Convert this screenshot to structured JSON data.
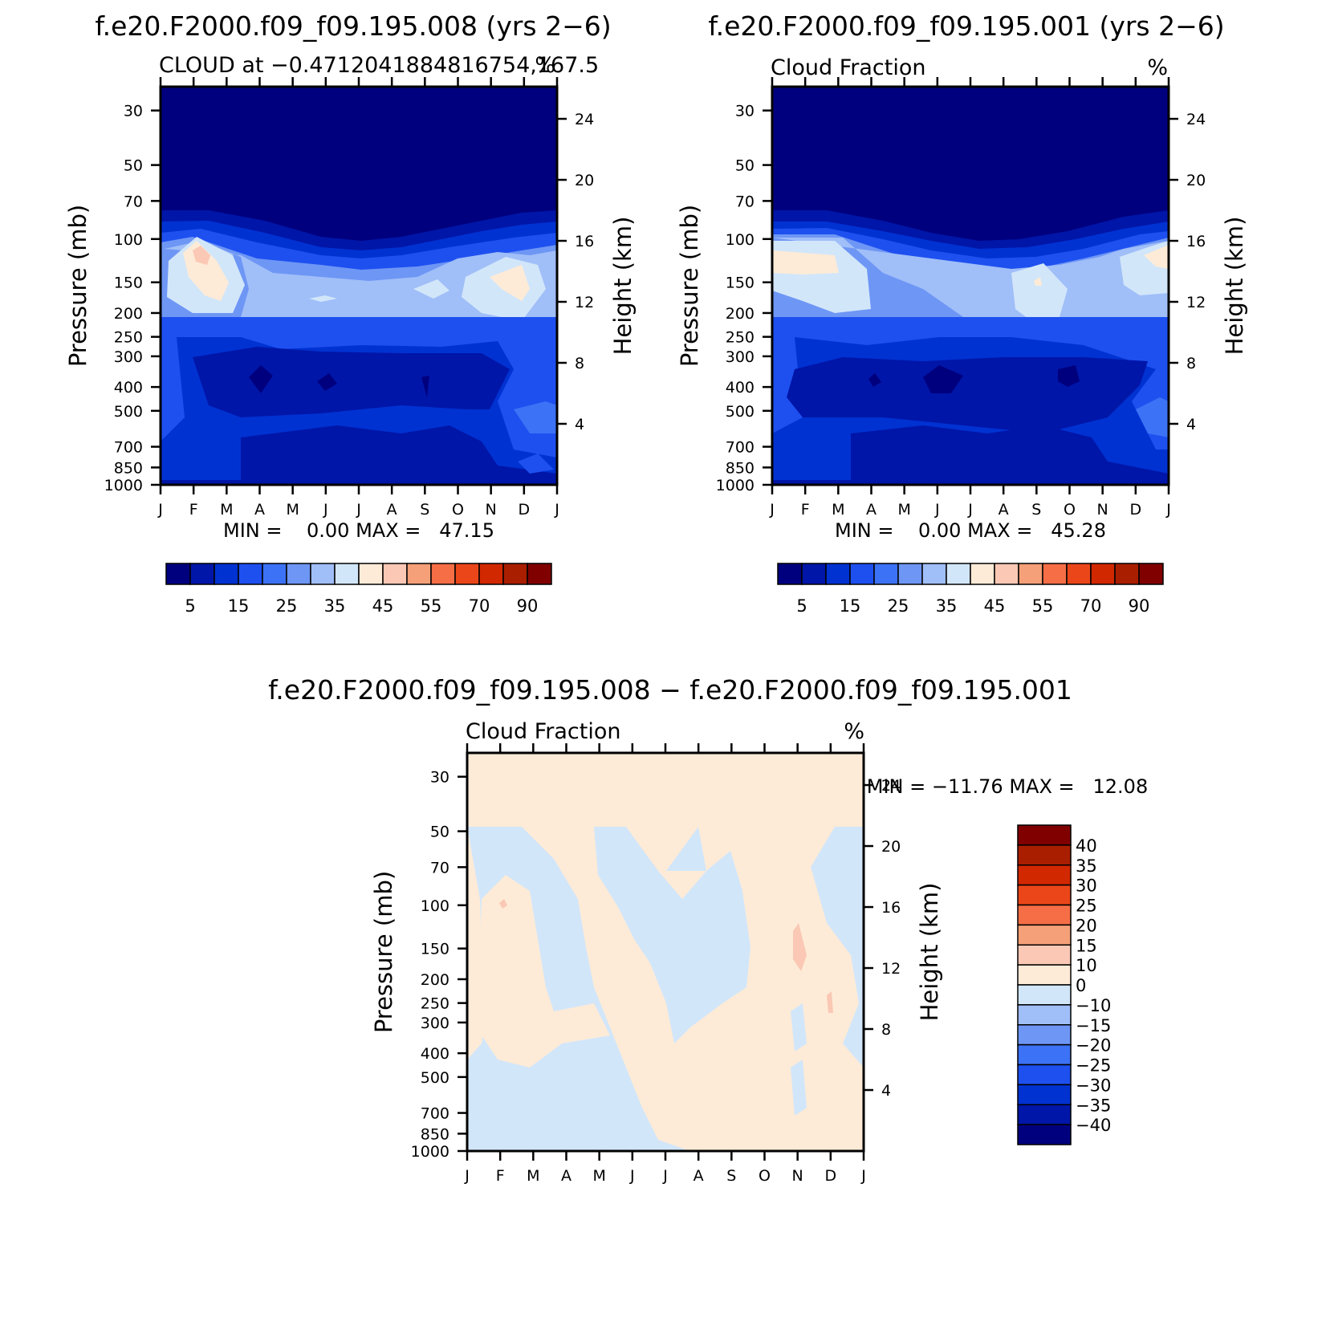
{
  "chart_data": [
    {
      "type": "heatmap",
      "case_title": "f.e20.F2000.f09_f09.195.008 (yrs 2−6)",
      "left_label": "CLOUD at −0.4712041884816754,167.5",
      "right_label": "%",
      "ylabel": "Pressure (mb)",
      "y2label": "Height (km)",
      "x_ticks": [
        "J",
        "F",
        "M",
        "A",
        "M",
        "J",
        "J",
        "A",
        "S",
        "O",
        "N",
        "D",
        "J"
      ],
      "p_ticks": [
        30,
        50,
        70,
        100,
        150,
        200,
        250,
        300,
        400,
        500,
        700,
        850,
        1000
      ],
      "h_ticks": [
        4,
        8,
        12,
        16,
        20,
        24
      ],
      "min_max": "MIN =    0.00 MAX =   47.15",
      "colorbar_labels": [
        "5",
        "15",
        "25",
        "35",
        "45",
        "55",
        "70",
        "90"
      ],
      "colorbar_colors": [
        "#00007f",
        "#0016a8",
        "#0032d2",
        "#1e50f0",
        "#3c72f5",
        "#6e96f5",
        "#a0bef8",
        "#d2e6fa",
        "#fdebd7",
        "#fac8b4",
        "#f5a078",
        "#f56e46",
        "#eb4619",
        "#d22800",
        "#aa1e00",
        "#800000"
      ]
    },
    {
      "type": "heatmap",
      "case_title": "f.e20.F2000.f09_f09.195.001 (yrs 2−6)",
      "left_label": "Cloud Fraction",
      "right_label": "%",
      "ylabel": "Pressure (mb)",
      "y2label": "Height (km)",
      "x_ticks": [
        "J",
        "F",
        "M",
        "A",
        "M",
        "J",
        "J",
        "A",
        "S",
        "O",
        "N",
        "D",
        "J"
      ],
      "p_ticks": [
        30,
        50,
        70,
        100,
        150,
        200,
        250,
        300,
        400,
        500,
        700,
        850,
        1000
      ],
      "h_ticks": [
        4,
        8,
        12,
        16,
        20,
        24
      ],
      "min_max": "MIN =    0.00 MAX =   45.28",
      "colorbar_labels": [
        "5",
        "15",
        "25",
        "35",
        "45",
        "55",
        "70",
        "90"
      ],
      "colorbar_colors": [
        "#00007f",
        "#0016a8",
        "#0032d2",
        "#1e50f0",
        "#3c72f5",
        "#6e96f5",
        "#a0bef8",
        "#d2e6fa",
        "#fdebd7",
        "#fac8b4",
        "#f5a078",
        "#f56e46",
        "#eb4619",
        "#d22800",
        "#aa1e00",
        "#800000"
      ]
    },
    {
      "type": "heatmap",
      "case_title": "f.e20.F2000.f09_f09.195.008 − f.e20.F2000.f09_f09.195.001",
      "left_label": "Cloud Fraction",
      "right_label": "%",
      "ylabel": "Pressure (mb)",
      "y2label": "Height (km)",
      "x_ticks": [
        "J",
        "F",
        "M",
        "A",
        "M",
        "J",
        "J",
        "A",
        "S",
        "O",
        "N",
        "D",
        "J"
      ],
      "p_ticks": [
        30,
        50,
        70,
        100,
        150,
        200,
        250,
        300,
        400,
        500,
        700,
        850,
        1000
      ],
      "h_ticks": [
        4,
        8,
        12,
        16,
        20,
        24
      ],
      "min_max": "MIN = −11.76 MAX =   12.08",
      "colorbar_labels": [
        "40",
        "35",
        "30",
        "25",
        "20",
        "15",
        "10",
        "0",
        "−10",
        "−15",
        "−20",
        "−25",
        "−30",
        "−35",
        "−40"
      ],
      "colorbar_colors": [
        "#800000",
        "#aa1e00",
        "#d22800",
        "#eb4619",
        "#f56e46",
        "#f5a078",
        "#fac8b4",
        "#fdebd7",
        "#d2e6fa",
        "#a0bef8",
        "#6e96f5",
        "#3c72f5",
        "#1e50f0",
        "#0032d2",
        "#0016a8",
        "#00007f"
      ]
    }
  ]
}
